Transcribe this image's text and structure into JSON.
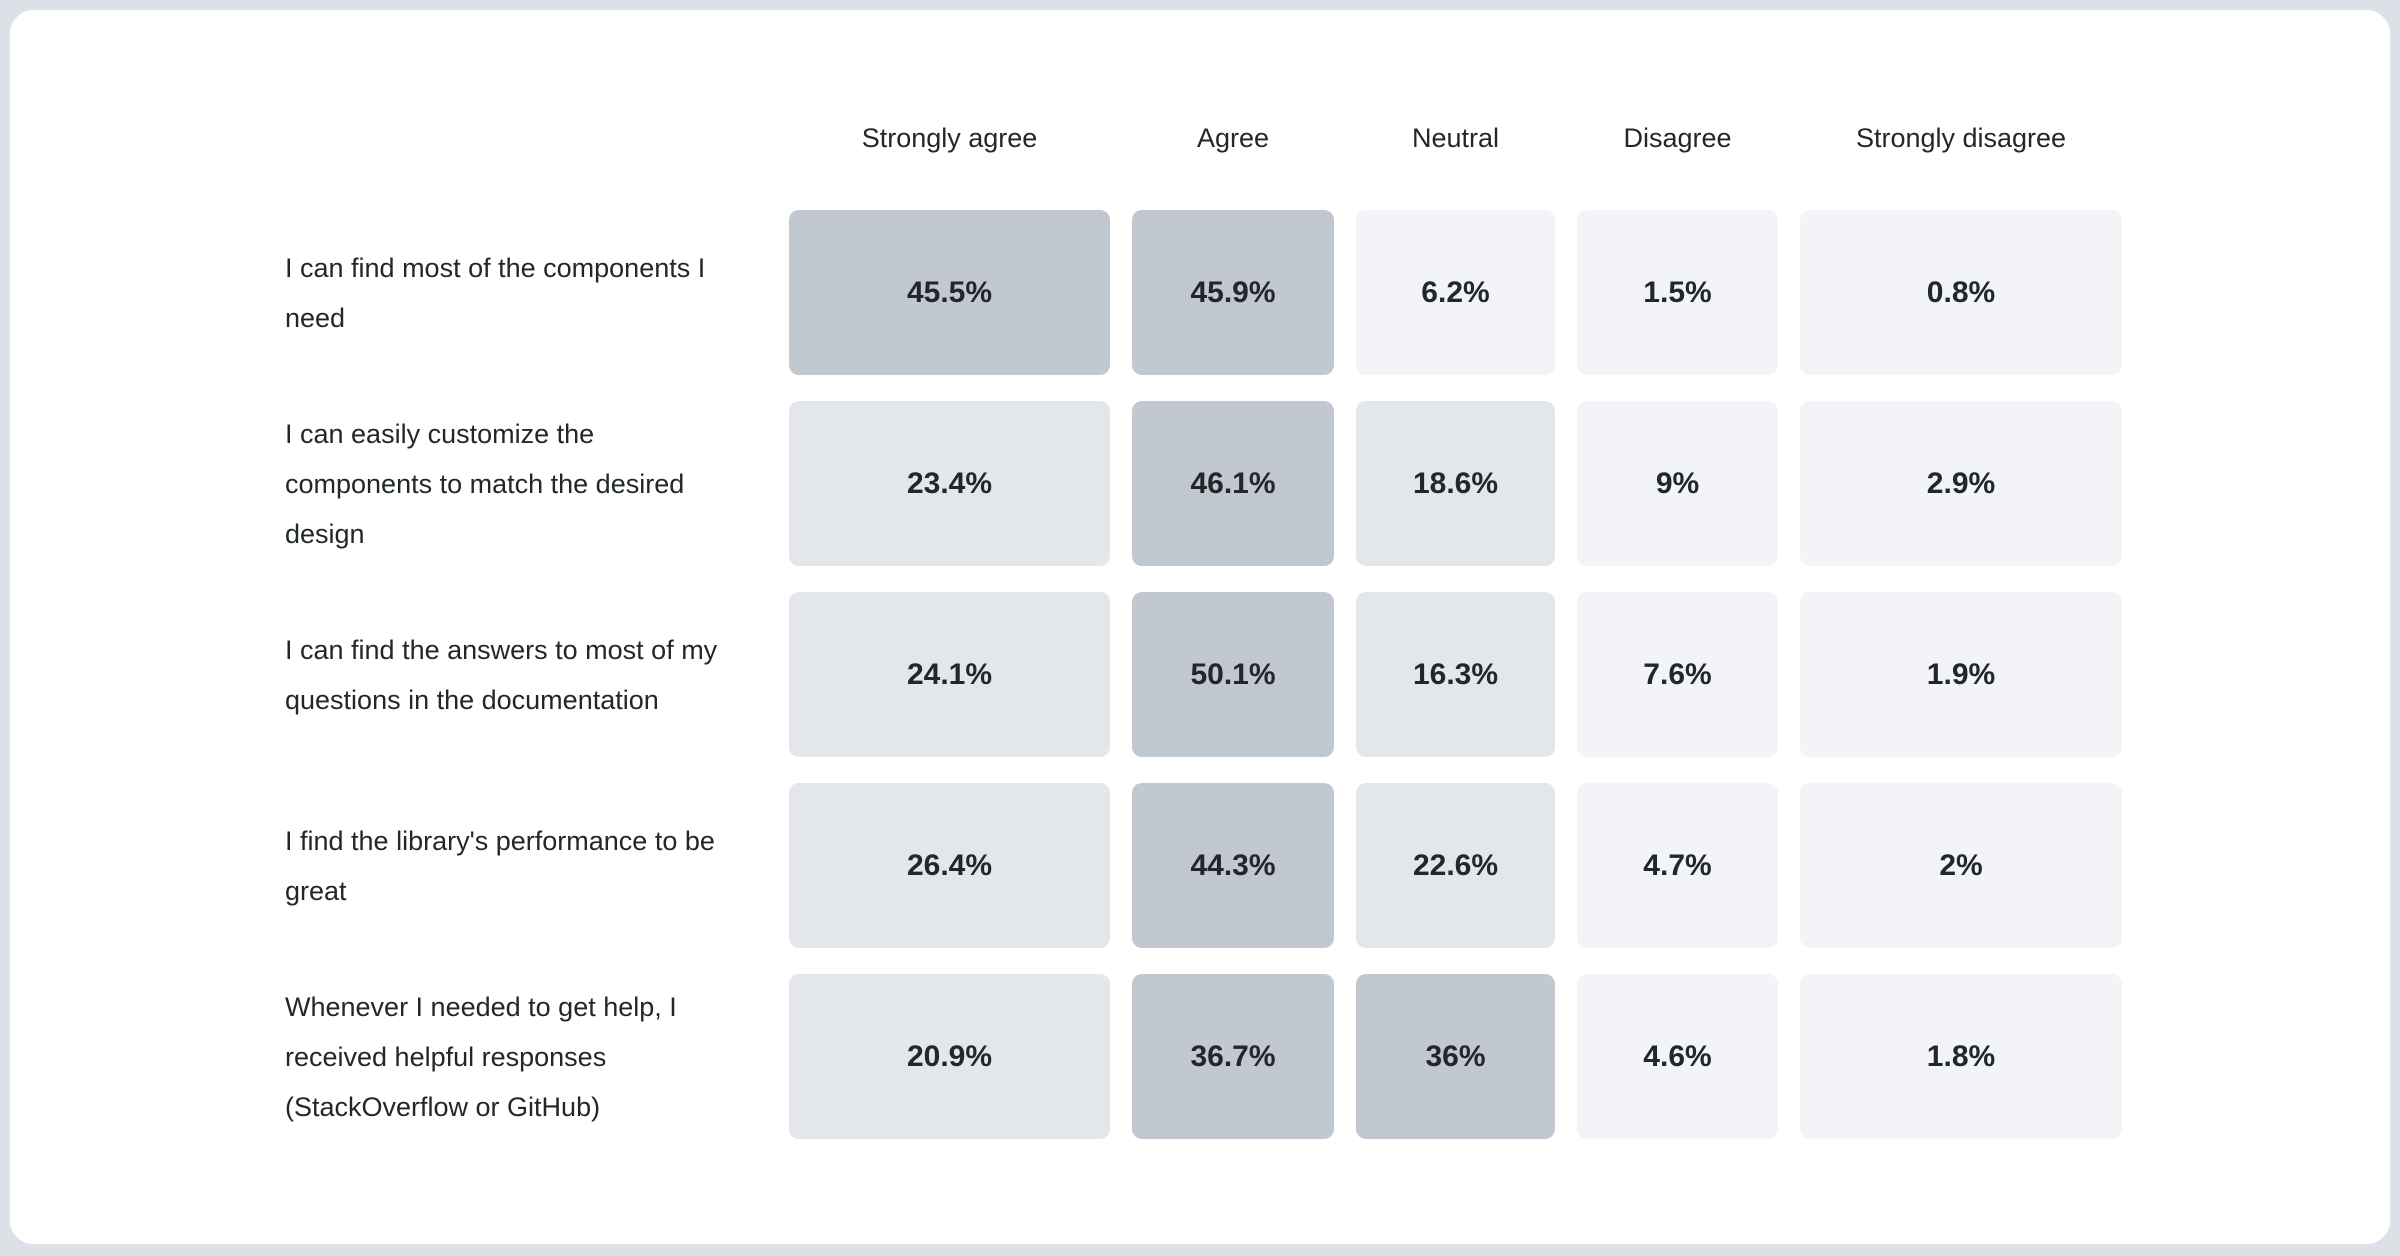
{
  "page": {
    "background": "#dce1e7",
    "card_background": "#ffffff",
    "card_border": "#dfe3e8"
  },
  "chart_data": {
    "type": "heatmap",
    "title": "",
    "columns": [
      "Strongly agree",
      "Agree",
      "Neutral",
      "Disagree",
      "Strongly disagree"
    ],
    "rows": [
      {
        "label": "I can find most of the components I need",
        "values": [
          45.5,
          45.9,
          6.2,
          1.5,
          0.8
        ],
        "display": [
          "45.5%",
          "45.9%",
          "6.2%",
          "1.5%",
          "0.8%"
        ]
      },
      {
        "label": "I can easily customize the components to match the desired design",
        "values": [
          23.4,
          46.1,
          18.6,
          9,
          2.9
        ],
        "display": [
          "23.4%",
          "46.1%",
          "18.6%",
          "9%",
          "2.9%"
        ]
      },
      {
        "label": "I can find the answers to most of my questions in the documentation",
        "values": [
          24.1,
          50.1,
          16.3,
          7.6,
          1.9
        ],
        "display": [
          "24.1%",
          "50.1%",
          "16.3%",
          "7.6%",
          "1.9%"
        ]
      },
      {
        "label": "I find the library's performance to be great",
        "values": [
          26.4,
          44.3,
          22.6,
          4.7,
          2
        ],
        "display": [
          "26.4%",
          "44.3%",
          "22.6%",
          "4.7%",
          "2%"
        ]
      },
      {
        "label": "Whenever I needed to get help, I received helpful responses (StackOverflow or GitHub)",
        "values": [
          20.9,
          36.7,
          36,
          4.6,
          1.8
        ],
        "display": [
          "20.9%",
          "36.7%",
          "36%",
          "4.6%",
          "1.8%"
        ]
      }
    ],
    "color_scale": {
      "bins": [
        {
          "max": 15,
          "color": "#f2f4f8"
        },
        {
          "max": 30,
          "color": "#e3e7ec"
        },
        {
          "max": 100,
          "color": "#c2c8d0"
        }
      ],
      "text_color": "#21272a"
    }
  }
}
